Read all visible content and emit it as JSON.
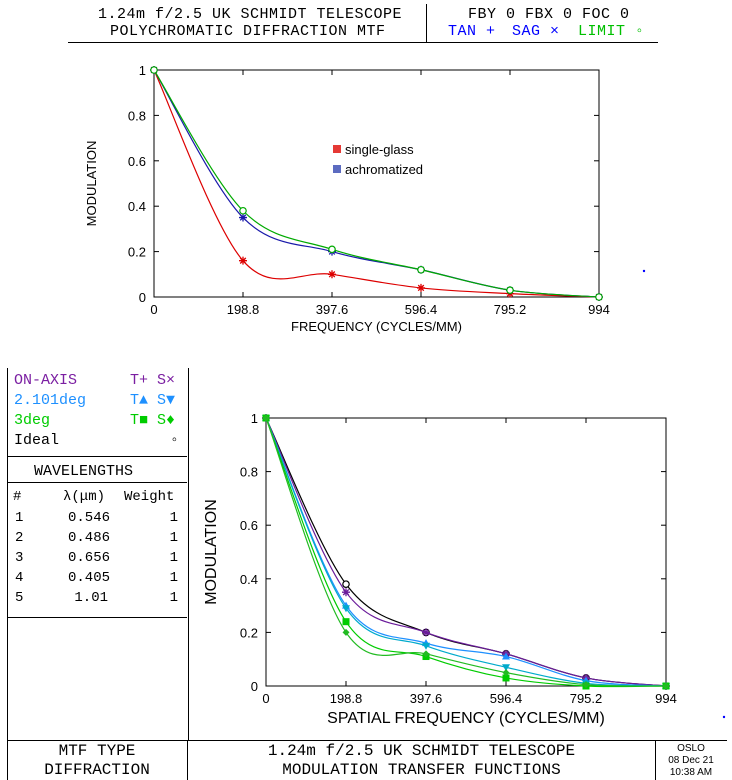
{
  "header": {
    "title_line1": "1.24m f/2.5 UK SCHMIDT TELESCOPE",
    "title_line2": "POLYCHROMATIC DIFFRACTION MTF",
    "field_line": "FBY 0 FBX 0 FOC 0",
    "key_tan": "TAN +",
    "key_sag": "SAG ×",
    "key_limit": "LIMIT ◦",
    "colors": {
      "tan": "#0000ff",
      "sag": "#0000ff",
      "limit": "#00c000"
    }
  },
  "legend_panel": {
    "rows": [
      {
        "label": "ON-AXIS",
        "t": "T+",
        "s": "S×",
        "color": "#7b1fa2"
      },
      {
        "label": "2.101deg",
        "t": "T▲",
        "s": "S▼",
        "color": "#1e90ff"
      },
      {
        "label": "3deg",
        "t": "T■",
        "s": "S♦",
        "color": "#00cc00"
      },
      {
        "label": "Ideal",
        "t": "",
        "s": "◦",
        "color": "#000000"
      }
    ]
  },
  "wavelengths": {
    "title": "WAVELENGTHS",
    "col_num": "#",
    "col_lambda": "λ(μm)",
    "col_weight": "Weight",
    "rows": [
      {
        "n": "1",
        "lambda": "0.546",
        "weight": "1"
      },
      {
        "n": "2",
        "lambda": "0.486",
        "weight": "1"
      },
      {
        "n": "3",
        "lambda": "0.656",
        "weight": "1"
      },
      {
        "n": "4",
        "lambda": "0.405",
        "weight": "1"
      },
      {
        "n": "5",
        "lambda": "1.01",
        "weight": "1"
      }
    ]
  },
  "footer": {
    "type_label": "MTF TYPE",
    "type_value": "DIFFRACTION",
    "title_line1": "1.24m f/2.5 UK SCHMIDT TELESCOPE",
    "title_line2": "MODULATION TRANSFER FUNCTIONS",
    "app": "OSLO",
    "date": "08 Dec 21",
    "time": "10:38 AM"
  },
  "chart_data": [
    {
      "type": "line",
      "xlabel": "FREQUENCY (CYCLES/MM)",
      "ylabel": "MODULATION",
      "xlim": [
        0,
        994
      ],
      "ylim": [
        0,
        1
      ],
      "x_ticks": [
        "0",
        "198.8",
        "397.6",
        "596.4",
        "795.2",
        "994"
      ],
      "y_ticks": [
        "0",
        "0.2",
        "0.4",
        "0.6",
        "0.8",
        "1"
      ],
      "legend_placement": "center",
      "series": [
        {
          "name": "single-glass",
          "color": "#dd0000",
          "x": [
            0,
            198.8,
            397.6,
            596.4,
            795.2,
            994
          ],
          "values": [
            1.0,
            0.16,
            0.1,
            0.04,
            0.015,
            0.0
          ]
        },
        {
          "name": "achromatized",
          "color": "#1a1aaa",
          "x": [
            0,
            198.8,
            397.6,
            596.4,
            795.2,
            994
          ],
          "values": [
            1.0,
            0.35,
            0.2,
            0.12,
            0.03,
            0.0
          ]
        },
        {
          "color": "#00aa00",
          "x": [
            0,
            198.8,
            397.6,
            596.4,
            795.2,
            994
          ],
          "values": [
            1.0,
            0.38,
            0.21,
            0.12,
            0.03,
            0.0
          ]
        }
      ]
    },
    {
      "type": "line",
      "xlabel": "SPATIAL FREQUENCY (CYCLES/MM)",
      "ylabel": "MODULATION",
      "xlim": [
        0,
        994
      ],
      "ylim": [
        0,
        1
      ],
      "x_ticks": [
        "0",
        "198.8",
        "397.6",
        "596.4",
        "795.2",
        "994"
      ],
      "y_ticks": [
        "0",
        "0.2",
        "0.4",
        "0.6",
        "0.8",
        "1"
      ],
      "series": [
        {
          "name": "Ideal",
          "color": "#000000",
          "marker": "circle",
          "x": [
            0,
            198.8,
            397.6,
            596.4,
            795.2,
            994
          ],
          "values": [
            1.0,
            0.38,
            0.2,
            0.12,
            0.03,
            0.0
          ]
        },
        {
          "name": "ON-AXIS",
          "color": "#6a1b9a",
          "marker": "star",
          "x": [
            0,
            198.8,
            397.6,
            596.4,
            795.2,
            994
          ],
          "values": [
            1.0,
            0.35,
            0.2,
            0.12,
            0.03,
            0.0
          ]
        },
        {
          "name": "2.101deg",
          "color": "#1e90ff",
          "marker": "triangle",
          "x": [
            0,
            198.8,
            397.6,
            596.4,
            795.2,
            994
          ],
          "values": [
            1.0,
            0.3,
            0.16,
            0.11,
            0.02,
            0.0
          ]
        },
        {
          "name": "2.101deg",
          "color": "#00aacc",
          "marker": "triangle-down",
          "x": [
            0,
            198.8,
            397.6,
            596.4,
            795.2,
            994
          ],
          "values": [
            1.0,
            0.29,
            0.15,
            0.07,
            0.01,
            0.0
          ]
        },
        {
          "name": "3deg",
          "color": "#00cc00",
          "marker": "square",
          "x": [
            0,
            198.8,
            397.6,
            596.4,
            795.2,
            994
          ],
          "values": [
            1.0,
            0.24,
            0.11,
            0.03,
            0.0,
            0.0
          ]
        },
        {
          "name": "3deg",
          "color": "#22bb22",
          "marker": "diamond",
          "x": [
            0,
            198.8,
            397.6,
            596.4,
            795.2,
            994
          ],
          "values": [
            1.0,
            0.2,
            0.12,
            0.05,
            0.005,
            0.0
          ]
        }
      ]
    }
  ]
}
